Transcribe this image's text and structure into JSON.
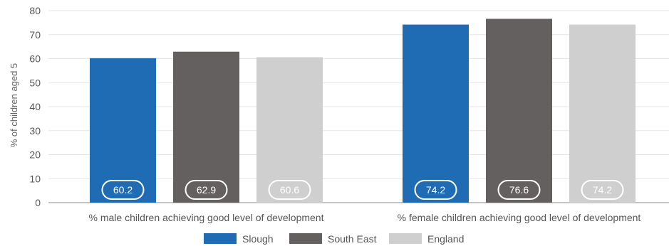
{
  "chart_data": {
    "type": "bar",
    "title": "",
    "xlabel": "",
    "ylabel": "% of children aged 5",
    "ylim": [
      0,
      80
    ],
    "yticks": [
      0,
      10,
      20,
      30,
      40,
      50,
      60,
      70,
      80
    ],
    "grid": true,
    "legend_position": "bottom",
    "categories": [
      "% male children achieving good level of development",
      "% female children achieving good level of development"
    ],
    "series": [
      {
        "name": "Slough",
        "color": "#1f6cb5",
        "values": [
          60.2,
          74.2
        ]
      },
      {
        "name": "South East",
        "color": "#646060",
        "values": [
          62.9,
          76.6
        ]
      },
      {
        "name": "England",
        "color": "#cfcfcf",
        "values": [
          60.6,
          74.2
        ]
      }
    ]
  }
}
